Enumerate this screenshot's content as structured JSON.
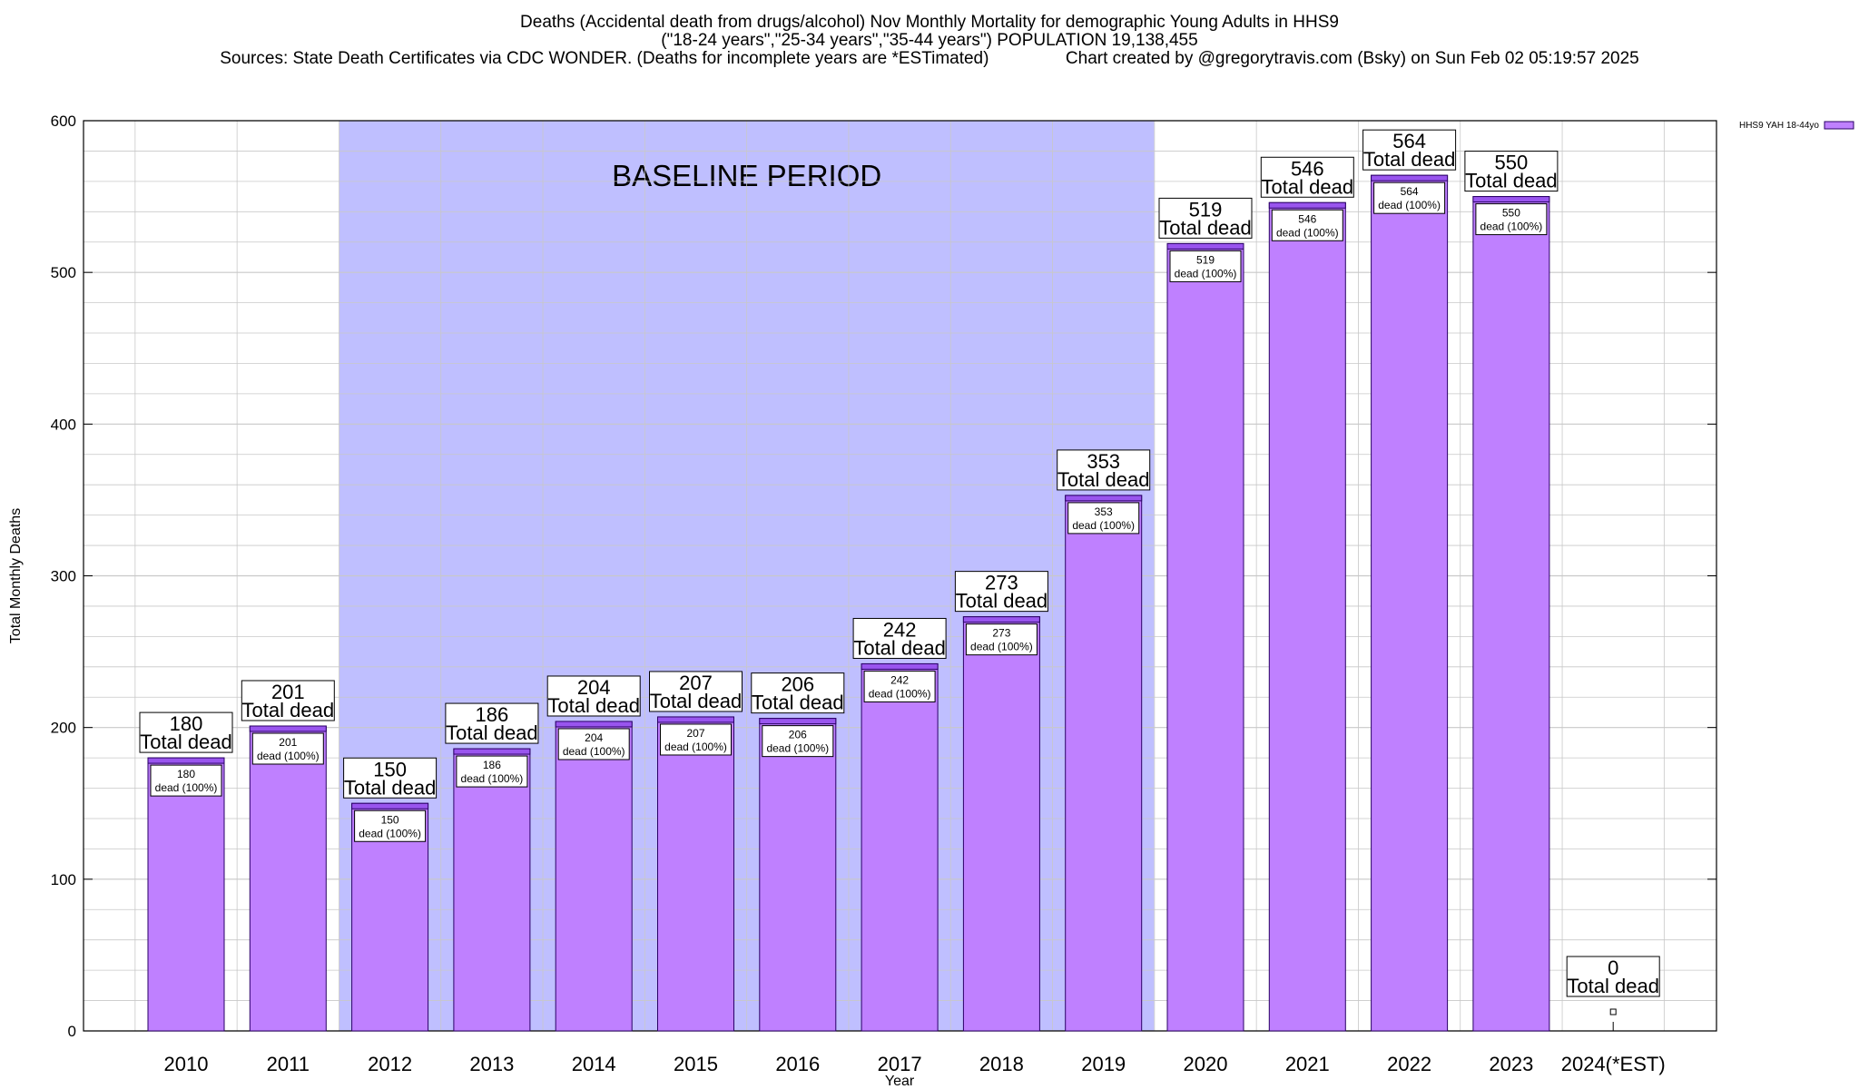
{
  "title": {
    "line1": "Deaths (Accidental death from drugs/alcohol) Nov Monthly Mortality for demographic Young Adults in HHS9",
    "line2": "(\"18-24 years\",\"25-34 years\",\"35-44 years\") POPULATION 19,138,455",
    "line3": "Sources: State Death Certificates via CDC WONDER. (Deaths for incomplete years are *ESTimated)                Chart created by @gregorytravis.com (Bsky) on Sun Feb 02 05:19:57 2025"
  },
  "chart_data": {
    "type": "bar",
    "title": "Deaths (Accidental death from drugs/alcohol) Nov Monthly Mortality for demographic Young Adults in HHS9",
    "xlabel": "Year",
    "ylabel": "Total Monthly Deaths",
    "ylim": [
      0,
      600
    ],
    "yticks": [
      0,
      100,
      200,
      300,
      400,
      500,
      600
    ],
    "grid": true,
    "categories": [
      "2010",
      "2011",
      "2012",
      "2013",
      "2014",
      "2015",
      "2016",
      "2017",
      "2018",
      "2019",
      "2020",
      "2021",
      "2022",
      "2023",
      "2024(*EST)"
    ],
    "series": [
      {
        "name": "HHS9 YAH 18-44yo",
        "values": [
          180,
          201,
          150,
          186,
          204,
          207,
          206,
          242,
          273,
          353,
          519,
          546,
          564,
          550,
          0
        ]
      }
    ],
    "total_label_suffix": "Total dead",
    "bar_label_suffix": "dead (100%)",
    "baseline_period": {
      "label": "BASELINE PERIOD",
      "from": "2012",
      "to": "2019"
    },
    "legend_position": "top-right",
    "colors": {
      "bar": "#bf80ff",
      "bar_cap": "#9955ee",
      "bar_border": "#2a0066",
      "baseline_shade": "#bfbfff",
      "grid": "#c8c8c8"
    }
  }
}
